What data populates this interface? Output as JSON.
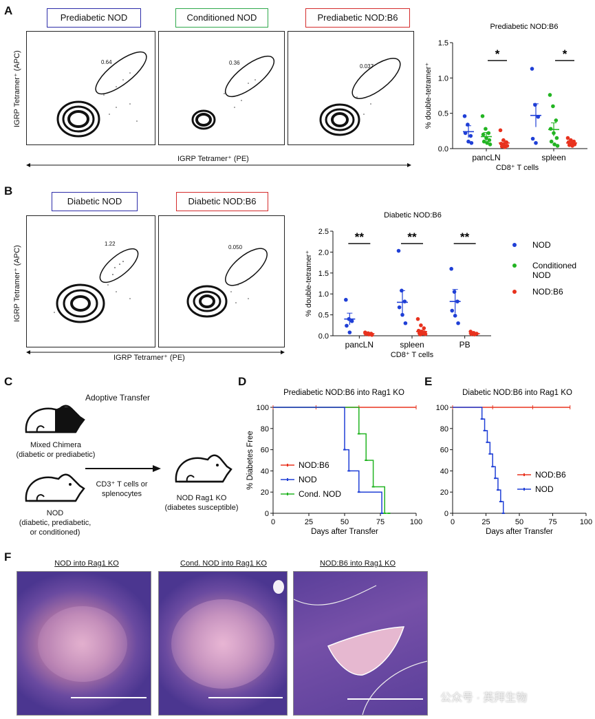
{
  "panels": {
    "A": "A",
    "B": "B",
    "C": "C",
    "D": "D",
    "E": "E",
    "F": "F"
  },
  "panelA": {
    "flows": [
      {
        "label": "Prediabetic NOD",
        "color": "#2b2ba8",
        "gate": "0.64"
      },
      {
        "label": "Conditioned NOD",
        "color": "#2ea84a",
        "gate": "0.36"
      },
      {
        "label": "Prediabetic NOD:B6",
        "color": "#d42a2a",
        "gate": "0.037"
      }
    ],
    "ylabel": "IGRP Tetramer⁺ (APC)",
    "xlabel": "IGRP Tetramer⁺ (PE)"
  },
  "panelB": {
    "flows": [
      {
        "label": "Diabetic NOD",
        "color": "#2b2ba8",
        "gate": "1.22"
      },
      {
        "label": "Diabetic NOD:B6",
        "color": "#d42a2a",
        "gate": "0.050"
      }
    ],
    "ylabel": "IGRP Tetramer⁺ (APC)",
    "xlabel": "IGRP Tetramer⁺ (PE)"
  },
  "panelC": {
    "title": "Adoptive Transfer",
    "chimera": "Mixed Chimera",
    "chimera_sub": "(diabetic or prediabetic)",
    "nod": "NOD",
    "nod_sub1": "(diabetic, prediabetic,",
    "nod_sub2": "or conditioned)",
    "arrow_text1": "CD3⁺ T cells or",
    "arrow_text2": "splenocytes",
    "recipient": "NOD Rag1 KO",
    "recipient_sub": "(diabetes susceptible)"
  },
  "panelF": {
    "titles": [
      "NOD into Rag1 KO",
      "Cond. NOD into Rag1 KO",
      "NOD:B6 into Rag1 KO"
    ]
  },
  "watermark": "公众号 · 英拜生物",
  "colors": {
    "nod": "#1f3fd6",
    "cond": "#22b422",
    "b6": "#e8321e"
  },
  "chart_data": [
    {
      "type": "scatter",
      "title": "Prediabetic NOD:B6",
      "ylabel": "% double-tetramer⁺",
      "xlabel": "CD8⁺ T cells",
      "ylim": [
        0,
        1.5
      ],
      "yticks": [
        "0.0",
        "0.5",
        "1.0",
        "1.5"
      ],
      "categories": [
        "pancLN",
        "spleen"
      ],
      "significance": [
        "*",
        "*"
      ],
      "series": [
        {
          "name": "NOD",
          "values": [
            [
              0.46,
              0.34,
              0.18,
              0.22,
              0.1,
              0.08
            ],
            [
              1.13,
              0.62,
              0.45,
              0.14,
              0.08
            ]
          ],
          "mean": [
            0.24,
            0.47
          ]
        },
        {
          "name": "Conditioned NOD",
          "values": [
            [
              0.46,
              0.28,
              0.22,
              0.2,
              0.15,
              0.12,
              0.1,
              0.08,
              0.06
            ],
            [
              0.76,
              0.6,
              0.4,
              0.28,
              0.22,
              0.15,
              0.1,
              0.06,
              0.04
            ]
          ],
          "mean": [
            0.17,
            0.27
          ]
        },
        {
          "name": "NOD:B6",
          "values": [
            [
              0.26,
              0.12,
              0.09,
              0.07,
              0.05,
              0.04,
              0.03,
              0.02
            ],
            [
              0.15,
              0.12,
              0.1,
              0.09,
              0.07,
              0.06,
              0.05,
              0.04
            ]
          ],
          "mean": [
            0.08,
            0.08
          ]
        }
      ]
    },
    {
      "type": "scatter",
      "title": "Diabetic NOD:B6",
      "ylabel": "% double-tetramer⁺",
      "xlabel": "CD8⁺ T cells",
      "ylim": [
        0,
        2.5
      ],
      "yticks": [
        "0.0",
        "0.5",
        "1.0",
        "1.5",
        "2.0",
        "2.5"
      ],
      "categories": [
        "pancLN",
        "spleen",
        "PB"
      ],
      "significance": [
        "**",
        "**",
        "**"
      ],
      "legend": [
        "NOD",
        "Conditioned NOD",
        "NOD:B6"
      ],
      "series": [
        {
          "name": "NOD",
          "values": [
            [
              0.86,
              0.4,
              0.35,
              0.24,
              0.08
            ],
            [
              2.03,
              1.08,
              0.82,
              0.68,
              0.5,
              0.3
            ],
            [
              1.6,
              1.05,
              0.82,
              0.6,
              0.48,
              0.3
            ]
          ],
          "mean": [
            0.4,
            0.8,
            0.82
          ]
        },
        {
          "name": "NOD:B6",
          "values": [
            [
              0.08,
              0.06,
              0.05,
              0.04,
              0.03,
              0.02
            ],
            [
              0.4,
              0.25,
              0.18,
              0.12,
              0.1,
              0.08,
              0.06,
              0.05,
              0.04,
              0.03
            ],
            [
              0.1,
              0.07,
              0.05,
              0.04,
              0.03
            ]
          ],
          "mean": [
            0.05,
            0.1,
            0.05
          ]
        }
      ]
    },
    {
      "type": "line",
      "title": "Prediabetic NOD:B6 into Rag1 KO",
      "ylabel": "% Diabetes Free",
      "xlabel": "Days after Transfer",
      "xlim": [
        0,
        100
      ],
      "ylim": [
        0,
        100
      ],
      "xticks": [
        "0",
        "25",
        "50",
        "75",
        "100"
      ],
      "yticks": [
        "0",
        "20",
        "40",
        "60",
        "80",
        "100"
      ],
      "series": [
        {
          "name": "NOD:B6",
          "x": [
            0,
            100
          ],
          "y": [
            100,
            100
          ]
        },
        {
          "name": "NOD",
          "x": [
            0,
            50,
            50,
            53,
            53,
            60,
            60,
            76,
            76
          ],
          "y": [
            100,
            100,
            60,
            60,
            40,
            40,
            20,
            20,
            0
          ]
        },
        {
          "name": "Cond. NOD",
          "x": [
            0,
            60,
            60,
            65,
            65,
            70,
            70,
            78,
            78,
            81,
            81
          ],
          "y": [
            100,
            100,
            75,
            75,
            50,
            50,
            25,
            25,
            0,
            0,
            0
          ]
        }
      ]
    },
    {
      "type": "line",
      "title": "Diabetic NOD:B6 into Rag1 KO",
      "ylabel": "",
      "xlabel": "Days after Transfer",
      "xlim": [
        0,
        100
      ],
      "ylim": [
        0,
        100
      ],
      "xticks": [
        "0",
        "25",
        "50",
        "75",
        "100"
      ],
      "yticks": [
        "0",
        "20",
        "40",
        "60",
        "80",
        "100"
      ],
      "series": [
        {
          "name": "NOD:B6",
          "x": [
            0,
            88
          ],
          "y": [
            100,
            100
          ]
        },
        {
          "name": "NOD",
          "x": [
            0,
            22,
            22,
            24,
            24,
            26,
            26,
            28,
            28,
            30,
            30,
            32,
            32,
            34,
            34,
            36,
            36,
            38,
            38
          ],
          "y": [
            100,
            100,
            89,
            89,
            78,
            78,
            67,
            67,
            56,
            56,
            44,
            44,
            33,
            33,
            22,
            22,
            11,
            11,
            0
          ]
        }
      ]
    }
  ]
}
